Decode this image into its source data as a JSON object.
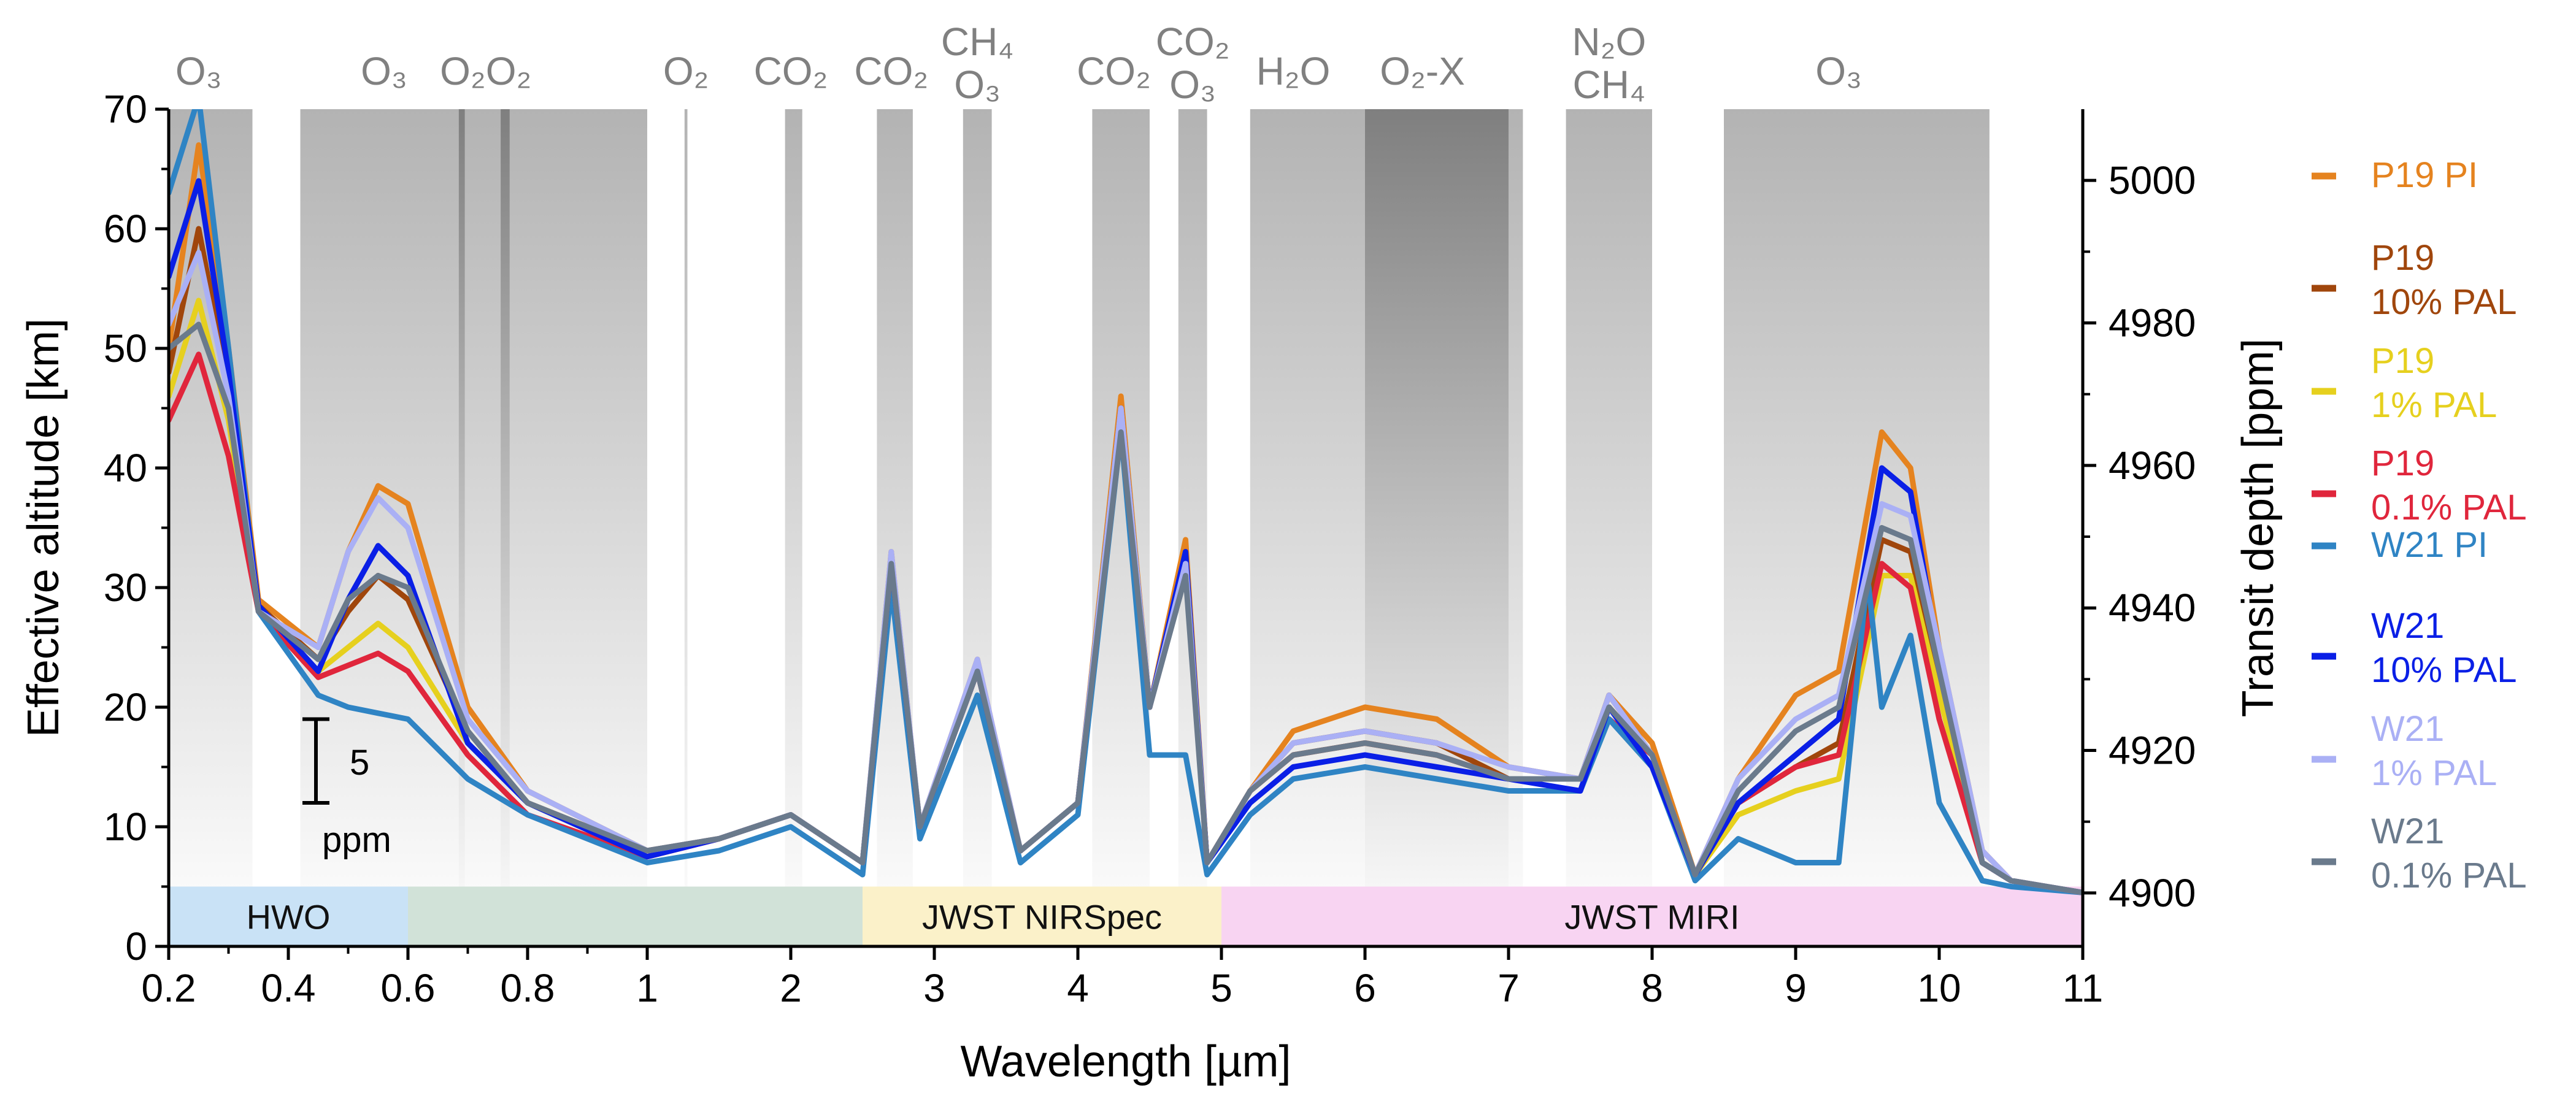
{
  "chart_data": {
    "type": "line",
    "xlabel": "Wavelength [µm]",
    "ylabel": "Effective altitude [km]",
    "y2label": "Transit depth [ppm]",
    "xscale": "piecewise: 0.2–1 µm stretched, 1–11 µm linear",
    "xlim": [
      0.2,
      11
    ],
    "ylim": [
      0,
      70
    ],
    "y2lim": [
      4892.5,
      5010
    ],
    "xticks": [
      0.2,
      0.4,
      0.6,
      0.8,
      1,
      2,
      3,
      4,
      5,
      6,
      7,
      8,
      9,
      10,
      11
    ],
    "xtick_labels": [
      "0.2",
      "0.4",
      "0.6",
      "0.8",
      "1",
      "2",
      "3",
      "4",
      "5",
      "6",
      "7",
      "8",
      "9",
      "10",
      "11"
    ],
    "yticks": [
      0,
      10,
      20,
      30,
      40,
      50,
      60,
      70
    ],
    "ytick_labels": [
      "0",
      "10",
      "20",
      "30",
      "40",
      "50",
      "60",
      "70"
    ],
    "y2ticks": [
      4900,
      4920,
      4940,
      4960,
      4980,
      5000
    ],
    "y2tick_labels": [
      "4900",
      "4920",
      "4940",
      "4960",
      "4980",
      "5000"
    ],
    "legend_position": "right, outside plot",
    "scale_bar": {
      "value_label": "5",
      "unit_label": "ppm",
      "y_range": [
        12,
        19
      ]
    },
    "instrument_regions": [
      {
        "label": "HWO",
        "x0": 0.2,
        "x1": 0.6,
        "color": "#c6e0f5"
      },
      {
        "label": "",
        "x0": 0.6,
        "x1": 2.5,
        "color": "#cfe0d6"
      },
      {
        "label": "JWST NIRSpec",
        "x0": 2.5,
        "x1": 5.0,
        "color": "#fbf0c6"
      },
      {
        "label": "JWST MIRI",
        "x0": 5.0,
        "x1": 11.0,
        "color": "#f8d2f1"
      }
    ],
    "absorption_bands": [
      {
        "label_lines": [
          "O₃"
        ],
        "x0": 0.2,
        "x1": 0.34,
        "label_x": 0.25,
        "dark": false
      },
      {
        "label_lines": [
          "O₃"
        ],
        "x0": 0.42,
        "x1": 1.0,
        "label_x": 0.56,
        "dark": false
      },
      {
        "label_lines": [
          "O₂O₂"
        ],
        "x0": 0.685,
        "x1": 0.695,
        "label_x": 0.73,
        "dark": true
      },
      {
        "label_lines": [],
        "x0": 0.755,
        "x1": 0.77,
        "label_x": 0.76,
        "dark": true
      },
      {
        "label_lines": [
          "O₂"
        ],
        "x0": 1.26,
        "x1": 1.28,
        "label_x": 1.27,
        "dark": false
      },
      {
        "label_lines": [
          "CO₂"
        ],
        "x0": 1.96,
        "x1": 2.08,
        "label_x": 2.0,
        "dark": false
      },
      {
        "label_lines": [
          "CO₂"
        ],
        "x0": 2.6,
        "x1": 2.85,
        "label_x": 2.7,
        "dark": false
      },
      {
        "label_lines": [
          "CH₄",
          "O₃"
        ],
        "x0": 3.2,
        "x1": 3.4,
        "label_x": 3.3,
        "dark": false
      },
      {
        "label_lines": [
          "CO₂"
        ],
        "x0": 4.1,
        "x1": 4.5,
        "label_x": 4.25,
        "dark": false
      },
      {
        "label_lines": [
          "CO₂",
          "O₃"
        ],
        "x0": 4.7,
        "x1": 4.9,
        "label_x": 4.8,
        "dark": false
      },
      {
        "label_lines": [
          "H₂O"
        ],
        "x0": 5.2,
        "x1": 6.0,
        "label_x": 5.5,
        "dark": false
      },
      {
        "label_lines": [
          "O₂-X"
        ],
        "x0": 6.0,
        "x1": 7.0,
        "label_x": 6.4,
        "dark": true
      },
      {
        "label_lines": [],
        "x0": 7.0,
        "x1": 7.1,
        "label_x": 7.05,
        "dark": false
      },
      {
        "label_lines": [
          "N₂O",
          "CH₄"
        ],
        "x0": 7.4,
        "x1": 8.0,
        "label_x": 7.7,
        "dark": false
      },
      {
        "label_lines": [
          "O₃"
        ],
        "x0": 8.5,
        "x1": 10.35,
        "label_x": 9.3,
        "dark": false
      }
    ],
    "series": [
      {
        "name": "P19 PI",
        "legend_lines": [
          "P19 PI"
        ],
        "color": "#e5831f",
        "x": [
          0.2,
          0.25,
          0.3,
          0.35,
          0.45,
          0.5,
          0.55,
          0.6,
          0.7,
          0.8,
          1.0,
          1.5,
          2.0,
          2.5,
          2.7,
          2.9,
          3.3,
          3.6,
          4.0,
          4.3,
          4.5,
          4.75,
          4.9,
          5.2,
          5.5,
          6.0,
          6.5,
          7.0,
          7.5,
          7.7,
          8.0,
          8.3,
          8.6,
          9.0,
          9.3,
          9.6,
          9.8,
          10.0,
          10.3,
          10.5,
          11.0
        ],
        "y": [
          50,
          67,
          50,
          29,
          25,
          33,
          38.5,
          37,
          20,
          13,
          8,
          9,
          11,
          7,
          33,
          10,
          24,
          8,
          12,
          46,
          20,
          34,
          7,
          13,
          18,
          20,
          19,
          15,
          14,
          21,
          17,
          6,
          14,
          21,
          23,
          43,
          40,
          25,
          8,
          5.5,
          4.5
        ]
      },
      {
        "name": "P19 10% PAL",
        "legend_lines": [
          "P19",
          "10% PAL"
        ],
        "color": "#a0460c",
        "x": [
          0.2,
          0.25,
          0.3,
          0.35,
          0.45,
          0.5,
          0.55,
          0.6,
          0.7,
          0.8,
          1.0,
          1.5,
          2.0,
          2.5,
          2.7,
          2.9,
          3.3,
          3.6,
          4.0,
          4.3,
          4.5,
          4.75,
          4.9,
          5.2,
          5.5,
          6.0,
          6.5,
          7.0,
          7.5,
          7.7,
          8.0,
          8.3,
          8.6,
          9.0,
          9.3,
          9.6,
          9.8,
          10.0,
          10.3,
          10.5,
          11.0
        ],
        "y": [
          48,
          60,
          47,
          28.5,
          24,
          28,
          31,
          29,
          18,
          12,
          8,
          9,
          11,
          7,
          32,
          10,
          23,
          8,
          12,
          45,
          20,
          33,
          7,
          13,
          17,
          18,
          17,
          14,
          14,
          21,
          16,
          6,
          12,
          15,
          17,
          34,
          33,
          22,
          7,
          5.5,
          4.5
        ]
      },
      {
        "name": "P19 1% PAL",
        "legend_lines": [
          "P19",
          "1% PAL"
        ],
        "color": "#e6d01e",
        "x": [
          0.2,
          0.25,
          0.3,
          0.35,
          0.45,
          0.5,
          0.55,
          0.6,
          0.7,
          0.8,
          1.0,
          1.5,
          2.0,
          2.5,
          2.7,
          2.9,
          3.3,
          3.6,
          4.0,
          4.3,
          4.5,
          4.75,
          4.9,
          5.2,
          5.5,
          6.0,
          6.5,
          7.0,
          7.5,
          7.7,
          8.0,
          8.3,
          8.6,
          9.0,
          9.3,
          9.6,
          9.8,
          10.0,
          10.3,
          10.5,
          11.0
        ],
        "y": [
          46,
          54,
          44,
          28,
          23,
          25,
          27,
          25,
          17,
          12,
          7.5,
          9,
          11,
          7,
          32,
          10,
          23,
          8,
          12,
          45,
          20,
          33,
          7,
          13,
          16,
          17,
          16,
          14,
          14,
          20,
          16,
          6,
          11,
          13,
          14,
          31,
          31,
          21,
          7,
          5.5,
          4.5
        ]
      },
      {
        "name": "P19 0.1% PAL",
        "legend_lines": [
          "P19",
          "0.1% PAL"
        ],
        "color": "#e0263c",
        "x": [
          0.2,
          0.25,
          0.3,
          0.35,
          0.45,
          0.5,
          0.55,
          0.6,
          0.7,
          0.8,
          1.0,
          1.5,
          2.0,
          2.5,
          2.7,
          2.9,
          3.3,
          3.6,
          4.0,
          4.3,
          4.5,
          4.75,
          4.9,
          5.2,
          5.5,
          6.0,
          6.5,
          7.0,
          7.5,
          7.7,
          8.0,
          8.3,
          8.6,
          9.0,
          9.3,
          9.6,
          9.8,
          10.0,
          10.3,
          10.5,
          11.0
        ],
        "y": [
          44,
          49.5,
          41,
          28,
          22.5,
          23.5,
          24.5,
          23,
          16,
          11,
          7.5,
          9,
          11,
          7,
          32,
          10,
          23,
          8,
          12,
          44,
          20,
          32,
          7,
          13,
          16,
          17,
          16,
          14,
          14,
          19,
          16,
          6,
          12,
          15,
          16,
          32,
          30,
          19,
          7,
          5.5,
          4.5
        ]
      },
      {
        "name": "W21 PI",
        "legend_lines": [
          "W21 PI"
        ],
        "color": "#2f84c4",
        "x": [
          0.2,
          0.25,
          0.3,
          0.35,
          0.45,
          0.5,
          0.55,
          0.6,
          0.7,
          0.8,
          1.0,
          1.5,
          2.0,
          2.5,
          2.7,
          2.9,
          3.3,
          3.6,
          4.0,
          4.3,
          4.5,
          4.75,
          4.9,
          5.2,
          5.5,
          6.0,
          6.5,
          7.0,
          7.5,
          7.7,
          8.0,
          8.3,
          8.6,
          9.0,
          9.3,
          9.5,
          9.6,
          9.8,
          10.0,
          10.3,
          10.5,
          11.0
        ],
        "y": [
          63,
          71,
          50,
          28,
          21,
          20,
          19.5,
          19,
          14,
          11,
          7,
          8,
          10,
          6,
          30,
          9,
          21,
          7,
          11,
          43,
          16,
          16,
          6,
          11,
          14,
          15,
          14,
          13,
          13,
          19,
          15,
          5.5,
          9,
          7,
          7,
          31,
          20,
          26,
          12,
          5.5,
          5,
          4.5
        ]
      },
      {
        "name": "W21 10% PAL",
        "legend_lines": [
          "W21",
          "10% PAL"
        ],
        "color": "#0a1fe6",
        "x": [
          0.2,
          0.25,
          0.3,
          0.35,
          0.45,
          0.5,
          0.55,
          0.6,
          0.7,
          0.8,
          1.0,
          1.5,
          2.0,
          2.5,
          2.7,
          2.9,
          3.3,
          3.6,
          4.0,
          4.3,
          4.5,
          4.75,
          4.9,
          5.2,
          5.5,
          6.0,
          6.5,
          7.0,
          7.5,
          7.7,
          8.0,
          8.3,
          8.6,
          9.0,
          9.3,
          9.6,
          9.8,
          10.0,
          10.3,
          10.5,
          11.0
        ],
        "y": [
          56,
          64,
          48,
          28.5,
          23,
          29,
          33.5,
          31,
          17,
          12,
          7.5,
          9,
          11,
          7,
          32,
          10,
          23,
          8,
          12,
          45,
          20,
          33,
          7,
          12,
          15,
          16,
          15,
          14,
          13,
          20,
          15,
          6,
          12,
          16,
          19,
          40,
          38,
          24,
          7,
          5.5,
          4.5
        ]
      },
      {
        "name": "W21 1% PAL",
        "legend_lines": [
          "W21",
          "1% PAL"
        ],
        "color": "#aab0f5",
        "x": [
          0.2,
          0.25,
          0.3,
          0.35,
          0.45,
          0.5,
          0.55,
          0.6,
          0.7,
          0.8,
          1.0,
          1.5,
          2.0,
          2.5,
          2.7,
          2.9,
          3.3,
          3.6,
          4.0,
          4.3,
          4.5,
          4.75,
          4.9,
          5.2,
          5.5,
          6.0,
          6.5,
          7.0,
          7.5,
          7.7,
          8.0,
          8.3,
          8.6,
          9.0,
          9.3,
          9.6,
          9.8,
          10.0,
          10.3,
          10.5,
          11.0
        ],
        "y": [
          52,
          58,
          46,
          28,
          25,
          33,
          37.5,
          35,
          19,
          13,
          8,
          9,
          11,
          7,
          33,
          10,
          24,
          8,
          12,
          45,
          20,
          32,
          7,
          13,
          17,
          18,
          17,
          15,
          14,
          21,
          16,
          6,
          14,
          19,
          21,
          37,
          36,
          25,
          8,
          5.5,
          4.5
        ]
      },
      {
        "name": "W21 0.1% PAL",
        "legend_lines": [
          "W21",
          "0.1% PAL"
        ],
        "color": "#6a7a8c",
        "x": [
          0.2,
          0.25,
          0.3,
          0.35,
          0.45,
          0.5,
          0.55,
          0.6,
          0.7,
          0.8,
          1.0,
          1.5,
          2.0,
          2.5,
          2.7,
          2.9,
          3.3,
          3.6,
          4.0,
          4.3,
          4.5,
          4.75,
          4.9,
          5.2,
          5.5,
          6.0,
          6.5,
          7.0,
          7.5,
          7.7,
          8.0,
          8.3,
          8.6,
          9.0,
          9.3,
          9.6,
          9.8,
          10.0,
          10.3,
          10.5,
          11.0
        ],
        "y": [
          50,
          52,
          45,
          28,
          24,
          29,
          31,
          30,
          18,
          12,
          8,
          9,
          11,
          7,
          32,
          10,
          23,
          8,
          12,
          43,
          20,
          31,
          7,
          13,
          16,
          17,
          16,
          14,
          14,
          20,
          16,
          6,
          13,
          18,
          20,
          35,
          34,
          23,
          7,
          5.5,
          4.5
        ]
      }
    ]
  }
}
